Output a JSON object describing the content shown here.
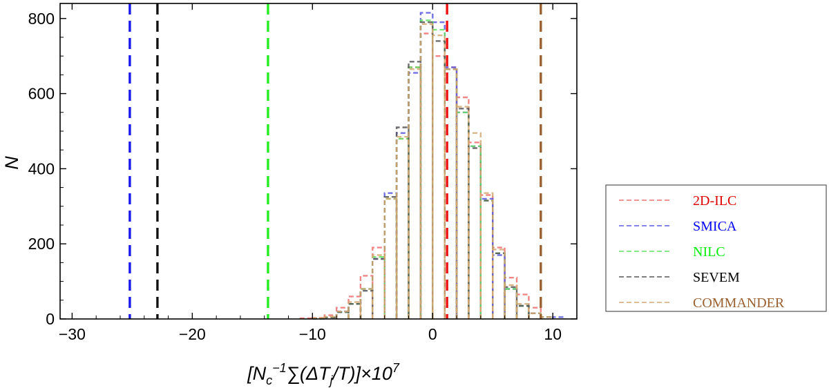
{
  "chart_data": {
    "type": "histogram",
    "xlabel": {
      "open": "[",
      "N": "N",
      "sub_c": "c",
      "sup_m1": "−1",
      "sum": "∑(",
      "dT": "ΔT",
      "sub_j": "j",
      "slash_T": "/T",
      "close": ")]×10",
      "sup_7": "7"
    },
    "ylabel": "N",
    "xlim": [
      -31,
      12
    ],
    "ylim": [
      0,
      840
    ],
    "xticks": [
      {
        "value": -30,
        "label": "−30"
      },
      {
        "value": -20,
        "label": "−20"
      },
      {
        "value": -10,
        "label": "−10"
      },
      {
        "value": 0,
        "label": "0"
      },
      {
        "value": 10,
        "label": "10"
      }
    ],
    "yticks": [
      {
        "value": 0,
        "label": "0"
      },
      {
        "value": 200,
        "label": "200"
      },
      {
        "value": 400,
        "label": "400"
      },
      {
        "value": 600,
        "label": "600"
      },
      {
        "value": 800,
        "label": "800"
      }
    ],
    "bin_edges": [
      -12,
      -11,
      -10,
      -9,
      -8,
      -7,
      -6,
      -5,
      -4,
      -3,
      -2,
      -1,
      0,
      1,
      2,
      3,
      4,
      5,
      6,
      7,
      8,
      9,
      10,
      11
    ],
    "series": [
      {
        "name": "2D-ILC",
        "line_color": "#f07070",
        "text_color": "#e00000",
        "counts": [
          0,
          2,
          3,
          10,
          30,
          60,
          115,
          190,
          320,
          480,
          670,
          760,
          700,
          670,
          590,
          470,
          330,
          190,
          110,
          65,
          30,
          5,
          0
        ]
      },
      {
        "name": "SMICA",
        "line_color": "#5858e0",
        "text_color": "#0000ff",
        "counts": [
          0,
          0,
          1,
          4,
          20,
          40,
          80,
          160,
          335,
          495,
          655,
          815,
          790,
          670,
          550,
          460,
          320,
          170,
          80,
          35,
          15,
          5,
          5
        ]
      },
      {
        "name": "NILC",
        "line_color": "#60e060",
        "text_color": "#00ee00",
        "counts": [
          0,
          0,
          1,
          4,
          18,
          40,
          80,
          165,
          320,
          480,
          670,
          795,
          770,
          665,
          550,
          460,
          315,
          175,
          80,
          35,
          15,
          5,
          0
        ]
      },
      {
        "name": "SEVEM",
        "line_color": "#555555",
        "text_color": "#000000",
        "counts": [
          0,
          0,
          1,
          4,
          18,
          40,
          75,
          160,
          325,
          510,
          685,
          790,
          740,
          665,
          560,
          455,
          315,
          175,
          85,
          35,
          15,
          5,
          0
        ]
      },
      {
        "name": "COMMANDER",
        "line_color": "#d4a872",
        "text_color": "#9a6030",
        "counts": [
          0,
          0,
          2,
          6,
          20,
          45,
          80,
          170,
          320,
          485,
          665,
          785,
          755,
          665,
          565,
          495,
          335,
          185,
          90,
          40,
          15,
          5,
          0
        ]
      }
    ],
    "vlines": [
      {
        "x": 1.2,
        "series": "2D-ILC",
        "color": "#ee1111"
      },
      {
        "x": -25.2,
        "series": "SMICA",
        "color": "#1818ee"
      },
      {
        "x": -13.7,
        "series": "NILC",
        "color": "#22ee22"
      },
      {
        "x": -22.9,
        "series": "SEVEM",
        "color": "#111111"
      },
      {
        "x": 9.0,
        "series": "COMMANDER",
        "color": "#9a6030"
      }
    ],
    "legend_position": "right"
  }
}
